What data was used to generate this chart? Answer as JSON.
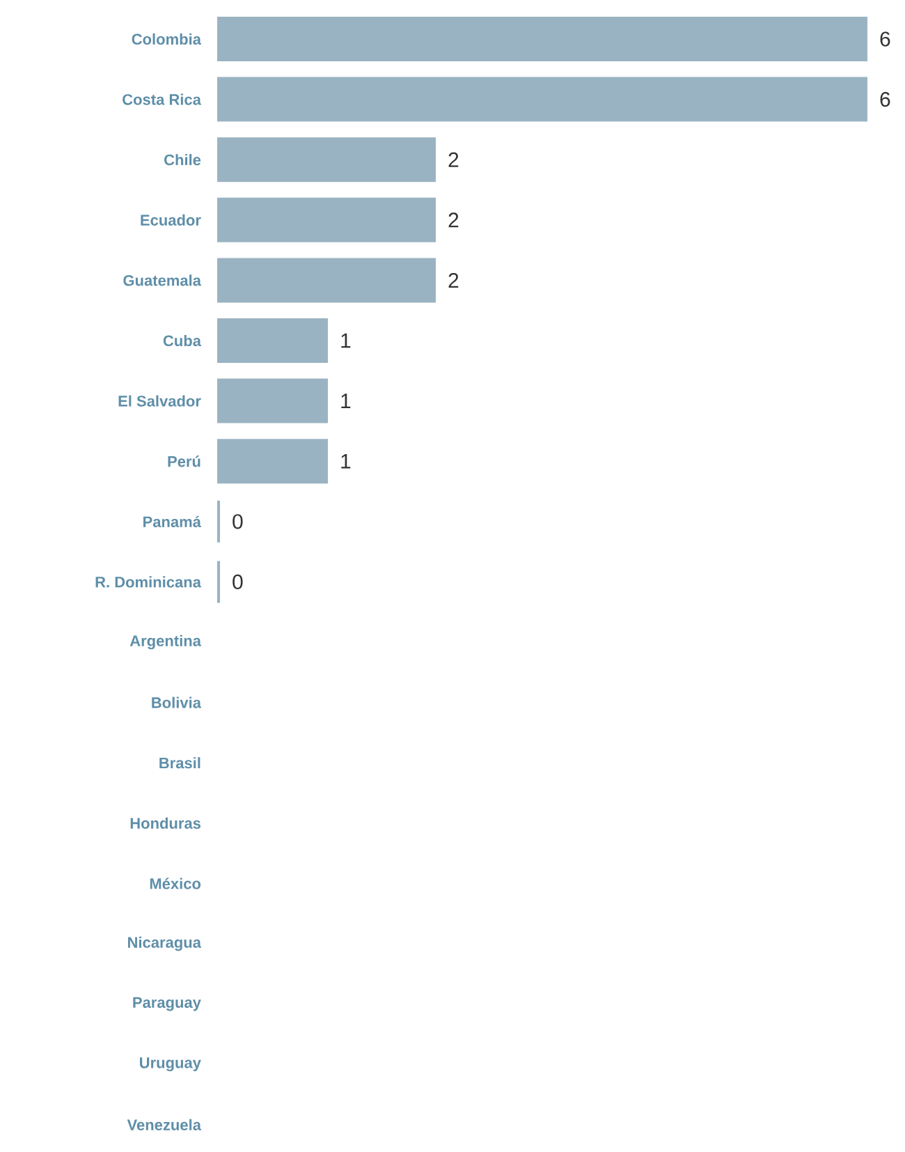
{
  "chart_data": {
    "type": "bar",
    "orientation": "horizontal",
    "categories": [
      "Colombia",
      "Costa Rica",
      "Chile",
      "Ecuador",
      "Guatemala",
      "Cuba",
      "El Salvador",
      "Perú",
      "Panamá",
      "R. Dominicana",
      "Argentina",
      "Bolivia",
      "Brasil",
      "Honduras",
      "México",
      "Nicaragua",
      "Paraguay",
      "Uruguay",
      "Venezuela"
    ],
    "values": [
      6,
      6,
      2,
      2,
      2,
      1,
      1,
      1,
      0,
      0,
      null,
      null,
      null,
      null,
      null,
      null,
      null,
      null,
      null
    ],
    "color": "#9ab3c2",
    "data_labels": true
  }
}
